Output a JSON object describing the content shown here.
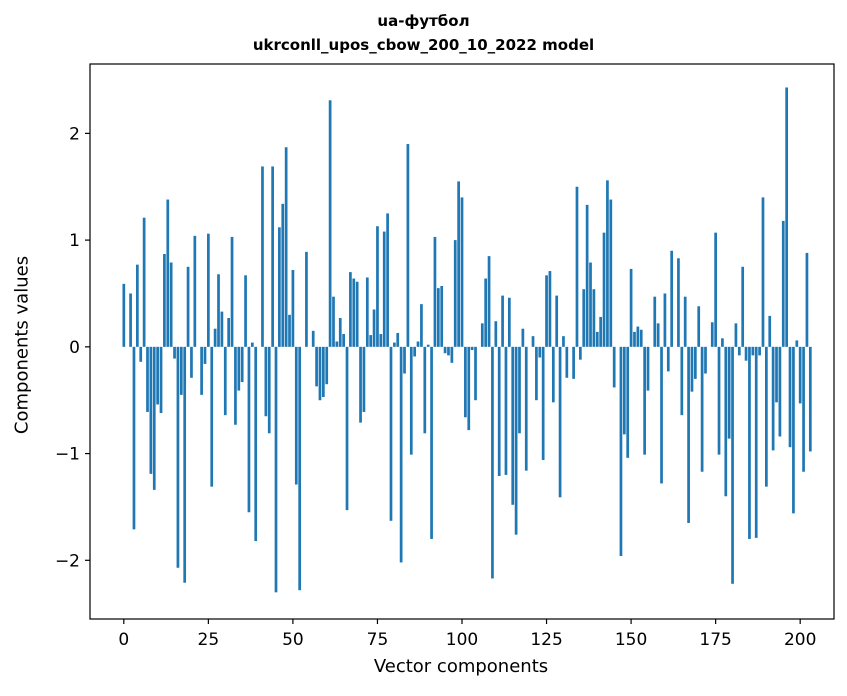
{
  "chart_data": {
    "type": "bar",
    "title": "ua-футбол",
    "subtitle": "ukrconll_upos_cbow_200_10_2022 model",
    "xlabel": "Vector components",
    "ylabel": "Components values",
    "xlim": [
      -10,
      210
    ],
    "ylim": [
      -2.55,
      2.65
    ],
    "xticks": [
      0,
      25,
      50,
      75,
      100,
      125,
      150,
      175,
      200
    ],
    "yticks": [
      -2,
      -1,
      0,
      1,
      2
    ],
    "ytick_labels": [
      "−2",
      "−1",
      "0",
      "1",
      "2"
    ],
    "grid": false,
    "bar_color": "#1f77b4",
    "values": [
      0.59,
      0.0,
      0.5,
      -1.71,
      0.77,
      -0.14,
      1.21,
      -0.61,
      -1.19,
      -1.34,
      -0.54,
      -0.62,
      0.87,
      1.38,
      0.79,
      -0.11,
      -2.07,
      -0.45,
      -2.21,
      0.75,
      -0.29,
      1.04,
      0.0,
      -0.45,
      -0.16,
      1.06,
      -1.31,
      0.17,
      0.68,
      0.33,
      -0.64,
      0.27,
      1.03,
      -0.73,
      -0.41,
      -0.33,
      0.67,
      -1.55,
      0.04,
      -1.82,
      0.0,
      1.69,
      -0.65,
      -0.81,
      1.69,
      -2.3,
      1.12,
      1.34,
      1.87,
      0.3,
      0.72,
      -1.29,
      -2.28,
      0.0,
      0.89,
      0.0,
      0.15,
      -0.37,
      -0.5,
      -0.47,
      -0.35,
      2.31,
      0.47,
      0.05,
      0.27,
      0.12,
      -1.53,
      0.7,
      0.64,
      0.61,
      -0.71,
      -0.61,
      0.65,
      0.11,
      0.35,
      1.13,
      0.12,
      1.08,
      1.25,
      -1.63,
      0.04,
      0.13,
      -2.02,
      -0.25,
      1.9,
      -1.01,
      -0.09,
      0.05,
      0.4,
      -0.81,
      0.02,
      -1.8,
      1.03,
      0.55,
      0.57,
      -0.06,
      -0.08,
      -0.15,
      1.0,
      1.55,
      1.4,
      -0.66,
      -0.78,
      -0.03,
      -0.5,
      0.0,
      0.22,
      0.64,
      0.85,
      -2.17,
      0.24,
      -1.21,
      0.48,
      -1.2,
      0.46,
      -1.48,
      -1.76,
      -0.81,
      0.17,
      -1.16,
      0.0,
      0.1,
      -0.5,
      -0.1,
      -1.06,
      0.67,
      0.71,
      -0.52,
      0.48,
      -1.41,
      0.1,
      -0.29,
      0.0,
      -0.3,
      1.5,
      -0.12,
      0.54,
      1.33,
      0.79,
      0.54,
      0.14,
      0.28,
      1.07,
      1.56,
      1.38,
      -0.38,
      0.0,
      -1.96,
      -0.82,
      -1.04,
      0.73,
      0.14,
      0.19,
      0.16,
      -1.01,
      -0.41,
      0.0,
      0.47,
      0.22,
      -1.28,
      0.5,
      -0.23,
      0.9,
      0.0,
      0.83,
      -0.64,
      0.47,
      -1.65,
      -0.42,
      -0.3,
      0.38,
      -1.17,
      -0.25,
      0.0,
      0.23,
      1.07,
      -1.01,
      0.08,
      -1.4,
      -0.86,
      -2.22,
      0.22,
      -0.08,
      0.75,
      -0.13,
      -1.8,
      -0.08,
      -1.79,
      -0.08,
      1.4,
      -1.31,
      0.29,
      -0.97,
      -0.52,
      -0.84,
      1.18,
      2.43,
      -0.94,
      -1.56,
      0.06,
      -0.53,
      -1.17,
      0.88,
      -0.98
    ]
  }
}
